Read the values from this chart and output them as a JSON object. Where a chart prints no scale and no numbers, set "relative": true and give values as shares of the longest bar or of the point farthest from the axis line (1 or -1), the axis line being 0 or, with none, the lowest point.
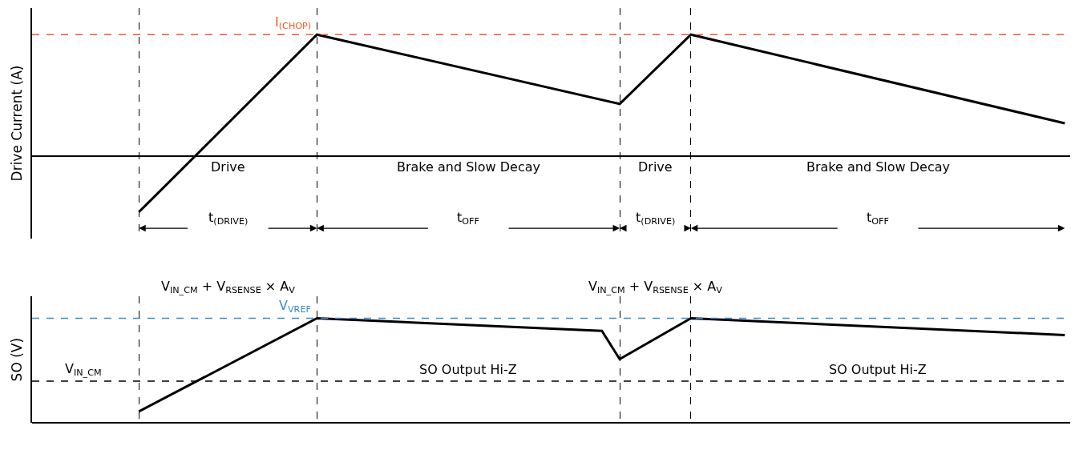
{
  "chart_data": [
    {
      "type": "line",
      "ylabel": "Drive Current (A)",
      "relative": true,
      "grid": "x",
      "line_style": "solid",
      "marker": "none",
      "categories": [
        null,
        null,
        null,
        null,
        null,
        null,
        null,
        null,
        null,
        null,
        null,
        null,
        null,
        null,
        null,
        null,
        null,
        null,
        null,
        null,
        null,
        null,
        null,
        null,
        null,
        null,
        null,
        null,
        null,
        null,
        null,
        null,
        null,
        null,
        null,
        null,
        null,
        null,
        null,
        null,
        null,
        null,
        null,
        null,
        null,
        null,
        null,
        null,
        null,
        null,
        null,
        null,
        null,
        null,
        null,
        null,
        null,
        null,
        null
      ],
      "series": [
        {
          "color": "#000000",
          "values": [
            null,
            null,
            null,
            null,
            null,
            null,
            -0.46,
            null,
            null,
            null,
            null,
            null,
            null,
            null,
            null,
            null,
            1,
            null,
            null,
            null,
            null,
            null,
            null,
            null,
            null,
            null,
            null,
            null,
            null,
            null,
            null,
            null,
            null,
            0.43,
            null,
            null,
            null,
            1,
            null,
            null,
            null,
            null,
            null,
            null,
            null,
            null,
            null,
            null,
            null,
            null,
            null,
            null,
            null,
            null,
            null,
            null,
            null,
            null,
            0.27
          ]
        }
      ],
      "ref_lines": [
        {
          "axis": "y",
          "value": 1,
          "label": "I$_{(CHOP)}$",
          "color": "#f15a29",
          "line_style": "dashed"
        }
      ],
      "annotations": [
        "Drive",
        "Brake and Slow Decay",
        "Drive",
        "Brake and Slow Decay",
        "t$_{(DRIVE)}$",
        "t$_{OFF}$",
        "t$_{(DRIVE)}$",
        "t$_{OFF}$"
      ]
    },
    {
      "type": "line",
      "ylabel": "SO (V)",
      "relative": true,
      "grid": "x",
      "line_style": "solid",
      "marker": "none",
      "categories": [
        null,
        null,
        null,
        null,
        null,
        null,
        null,
        null,
        null,
        null,
        null,
        null,
        null,
        null,
        null,
        null,
        null,
        null,
        null,
        null,
        null,
        null,
        null,
        null,
        null,
        null,
        null,
        null,
        null,
        null,
        null,
        null,
        null,
        null,
        null,
        null,
        null,
        null,
        null,
        null,
        null,
        null,
        null,
        null,
        null,
        null,
        null,
        null,
        null,
        null,
        null,
        null,
        null,
        null,
        null,
        null,
        null,
        null,
        null
      ],
      "series": [
        {
          "color": "#000000",
          "values": [
            null,
            null,
            null,
            null,
            null,
            null,
            0.11,
            null,
            null,
            null,
            null,
            null,
            null,
            null,
            null,
            null,
            1,
            null,
            null,
            null,
            null,
            null,
            null,
            null,
            null,
            null,
            null,
            null,
            null,
            null,
            null,
            null,
            0.88,
            0.61,
            null,
            null,
            null,
            1,
            null,
            null,
            null,
            null,
            null,
            null,
            null,
            null,
            null,
            null,
            null,
            null,
            null,
            null,
            null,
            null,
            null,
            null,
            null,
            null,
            0.84
          ]
        }
      ],
      "ref_lines": [
        {
          "axis": "y",
          "value": 1,
          "label": "V$_{VREF}$",
          "color": "#3a8bd1",
          "line_style": "dashed"
        },
        {
          "axis": "y",
          "value": 0.4,
          "label": "V$_{IN_CM}$",
          "line_style": "dashed"
        }
      ],
      "annotations": [
        "V$_{IN_CM}$ + V$_{RSENSE}$ × A$_{V}$",
        "V$_{IN_CM}$ + V$_{RSENSE}$ × A$_{V}$",
        "SO Output Hi-Z",
        "SO Output Hi-Z"
      ]
    }
  ]
}
